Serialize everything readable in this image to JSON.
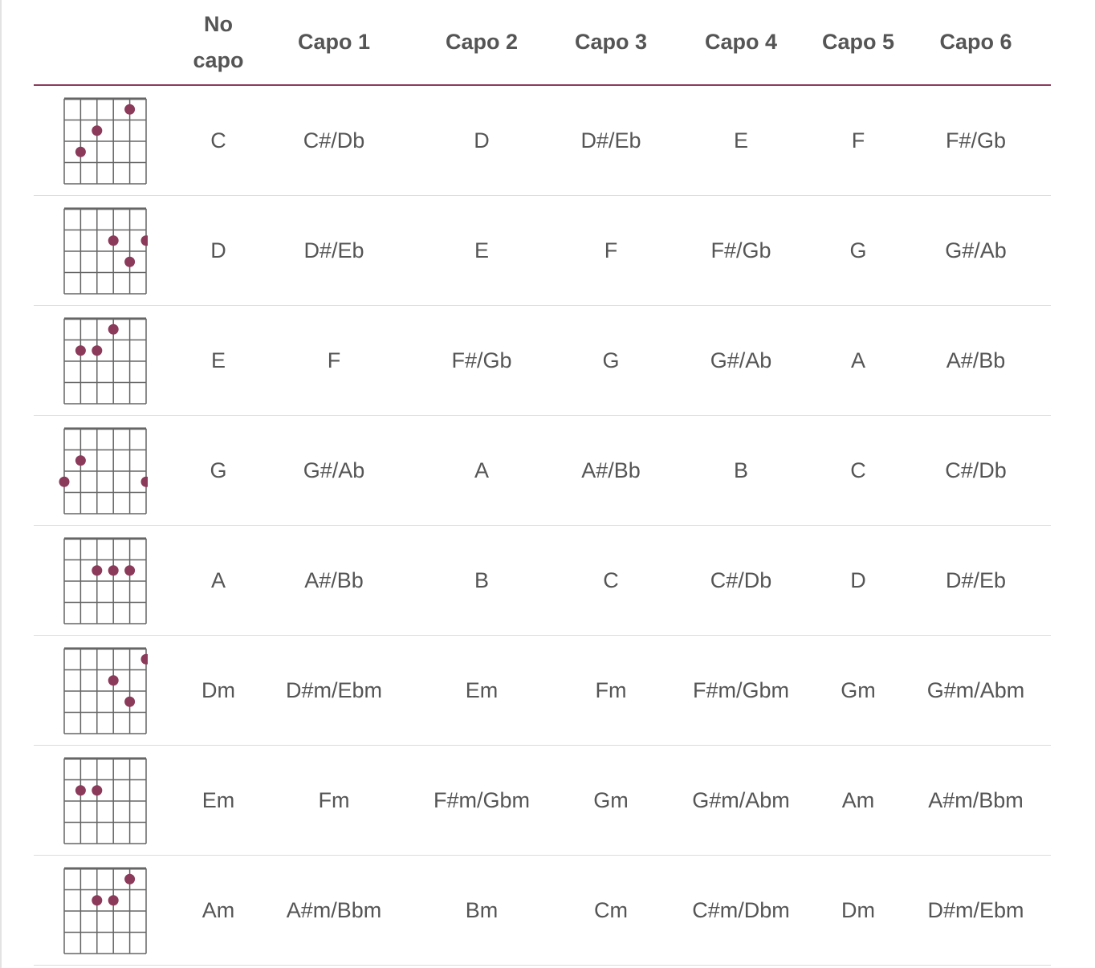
{
  "header": {
    "corner": "",
    "columns": [
      "No capo",
      "Capo 1",
      "Capo 2",
      "Capo 3",
      "Capo 4",
      "Capo 5",
      "Capo 6"
    ]
  },
  "colors": {
    "accent": "#8b3a5a",
    "dot": "#8b3a5a",
    "text": "#555555",
    "grid": "#666666",
    "row_rule": "#dcdcdc"
  },
  "rows": [
    {
      "diagram": {
        "dots": [
          {
            "string": 2,
            "fret": 3
          },
          {
            "string": 3,
            "fret": 2
          },
          {
            "string": 5,
            "fret": 1
          }
        ]
      },
      "chords": [
        "C",
        "C#/Db",
        "D",
        "D#/Eb",
        "E",
        "F",
        "F#/Gb"
      ]
    },
    {
      "diagram": {
        "dots": [
          {
            "string": 4,
            "fret": 2
          },
          {
            "string": 5,
            "fret": 3
          },
          {
            "string": 6,
            "fret": 2
          }
        ]
      },
      "chords": [
        "D",
        "D#/Eb",
        "E",
        "F",
        "F#/Gb",
        "G",
        "G#/Ab"
      ]
    },
    {
      "diagram": {
        "dots": [
          {
            "string": 2,
            "fret": 2
          },
          {
            "string": 3,
            "fret": 2
          },
          {
            "string": 4,
            "fret": 1
          }
        ]
      },
      "chords": [
        "E",
        "F",
        "F#/Gb",
        "G",
        "G#/Ab",
        "A",
        "A#/Bb"
      ]
    },
    {
      "diagram": {
        "dots": [
          {
            "string": 1,
            "fret": 3
          },
          {
            "string": 2,
            "fret": 2
          },
          {
            "string": 6,
            "fret": 3
          }
        ]
      },
      "chords": [
        "G",
        "G#/Ab",
        "A",
        "A#/Bb",
        "B",
        "C",
        "C#/Db"
      ]
    },
    {
      "diagram": {
        "dots": [
          {
            "string": 3,
            "fret": 2
          },
          {
            "string": 4,
            "fret": 2
          },
          {
            "string": 5,
            "fret": 2
          }
        ]
      },
      "chords": [
        "A",
        "A#/Bb",
        "B",
        "C",
        "C#/Db",
        "D",
        "D#/Eb"
      ]
    },
    {
      "diagram": {
        "dots": [
          {
            "string": 4,
            "fret": 2
          },
          {
            "string": 5,
            "fret": 3
          },
          {
            "string": 6,
            "fret": 1
          }
        ]
      },
      "chords": [
        "Dm",
        "D#m/Ebm",
        "Em",
        "Fm",
        "F#m/Gbm",
        "Gm",
        "G#m/Abm"
      ]
    },
    {
      "diagram": {
        "dots": [
          {
            "string": 2,
            "fret": 2
          },
          {
            "string": 3,
            "fret": 2
          }
        ]
      },
      "chords": [
        "Em",
        "Fm",
        "F#m/Gbm",
        "Gm",
        "G#m/Abm",
        "Am",
        "A#m/Bbm"
      ]
    },
    {
      "diagram": {
        "dots": [
          {
            "string": 3,
            "fret": 2
          },
          {
            "string": 4,
            "fret": 2
          },
          {
            "string": 5,
            "fret": 1
          }
        ]
      },
      "chords": [
        "Am",
        "A#m/Bbm",
        "Bm",
        "Cm",
        "C#m/Dbm",
        "Dm",
        "D#m/Ebm"
      ]
    }
  ]
}
